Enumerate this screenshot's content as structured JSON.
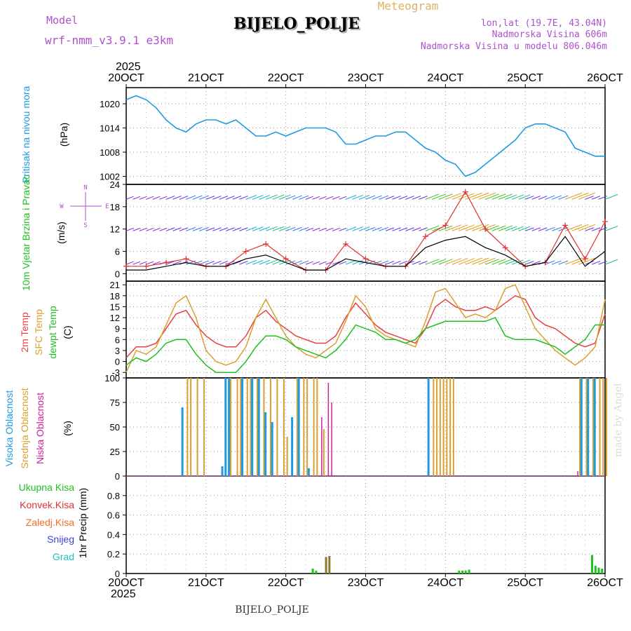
{
  "header": {
    "model_label": "Model",
    "model_name": "wrf-nmm_v3.9.1  e3km",
    "station": "BIJELO_POLJE",
    "product": "Meteogram",
    "lonlat": "lon,lat (19.7E, 43.04N)",
    "elevation": "Nadmorska Visina 606m",
    "model_elevation": "Nadmorska Visina u modelu 806.046m",
    "footer_station": "BIJELO_POLJE",
    "watermark": "made by Angel"
  },
  "colors": {
    "pressure": "#1e9be0",
    "wind_speed": "#000000",
    "gust": "#e03030",
    "t2m": "#e84040",
    "sfc": "#d9a030",
    "dewpt": "#20c020",
    "high_cloud": "#1e9be0",
    "mid_cloud": "#d9a030",
    "low_cloud": "#d020a0",
    "precip_total": "#20c020",
    "precip_conv": "#e03030",
    "precip_frozen": "#f07020",
    "snow": "#4040e0",
    "hail": "#20c0c0",
    "title_purple": "#b050d0",
    "meteogram_orange": "#e0b060"
  },
  "x_axis": {
    "top_labels": [
      "20OCT",
      "21OCT",
      "22OCT",
      "23OCT",
      "24OCT",
      "25OCT",
      "26OCT"
    ],
    "bottom_labels": [
      "20OCT",
      "21OCT",
      "22OCT",
      "23OCT",
      "24OCT",
      "25OCT",
      "26OCT"
    ],
    "year_top": "2025",
    "year_bottom": "2025"
  },
  "chart_data": [
    {
      "type": "line",
      "panel": "pressure",
      "ylabel": "Pritisak na nivou mora",
      "unit": "(hPa)",
      "yticks": [
        "1002",
        "1008",
        "1014",
        "1020"
      ],
      "ylim": [
        1000,
        1024
      ],
      "x": [
        0,
        3,
        6,
        9,
        12,
        15,
        18,
        21,
        24,
        27,
        30,
        33,
        36,
        39,
        42,
        45,
        48,
        51,
        54,
        57,
        60,
        63,
        66,
        69,
        72,
        75,
        78,
        81,
        84,
        87,
        90,
        93,
        96,
        99,
        102,
        105,
        108,
        111,
        114,
        117,
        120,
        123,
        126,
        129,
        132,
        135,
        138,
        141,
        144
      ],
      "values": [
        1021,
        1022,
        1021,
        1019,
        1016,
        1014,
        1013,
        1015,
        1016,
        1016,
        1015,
        1016,
        1014,
        1012,
        1012,
        1013,
        1012,
        1013,
        1014,
        1014,
        1014,
        1013,
        1010,
        1010,
        1011,
        1012,
        1012,
        1013,
        1013,
        1011,
        1009,
        1008,
        1006,
        1005,
        1002,
        1003,
        1005,
        1007,
        1009,
        1011,
        1014,
        1015,
        1015,
        1014,
        1013,
        1009,
        1008,
        1007,
        1007
      ]
    },
    {
      "type": "line",
      "panel": "wind",
      "ylabel": "10m Vjetar Brzina i Pravac",
      "unit": "(m/s)",
      "compass": {
        "n": "N",
        "s": "S",
        "e": "E",
        "w": "W"
      },
      "yticks": [
        "0",
        "6",
        "12",
        "18",
        "24"
      ],
      "ylim": [
        -2,
        24
      ],
      "x": [
        0,
        6,
        12,
        18,
        24,
        30,
        36,
        42,
        48,
        54,
        60,
        66,
        72,
        78,
        84,
        90,
        96,
        102,
        108,
        114,
        120,
        126,
        132,
        138,
        144
      ],
      "speed": [
        1,
        1,
        2,
        3,
        2,
        2,
        4,
        5,
        3,
        1,
        1,
        4,
        3,
        2,
        2,
        7,
        9,
        10,
        7,
        5,
        2,
        3,
        10,
        2,
        6
      ],
      "gust": [
        2,
        2,
        3,
        4,
        2,
        2,
        6,
        8,
        4,
        1,
        1,
        8,
        4,
        2,
        2,
        10,
        13,
        22,
        12,
        7,
        2,
        3,
        13,
        4,
        14
      ]
    },
    {
      "type": "line",
      "panel": "temperature",
      "ylabel_lines": [
        "2m Temp",
        "SFC Temp",
        "dewpt Temp"
      ],
      "unit": "(C)",
      "yticks": [
        "-3",
        "0",
        "3",
        "6",
        "9",
        "12",
        "15",
        "18",
        "21"
      ],
      "ylim": [
        -4.5,
        22
      ],
      "x": [
        0,
        3,
        6,
        9,
        12,
        15,
        18,
        21,
        24,
        27,
        30,
        33,
        36,
        39,
        42,
        45,
        48,
        51,
        54,
        57,
        60,
        63,
        66,
        69,
        72,
        75,
        78,
        81,
        84,
        87,
        90,
        93,
        96,
        99,
        102,
        105,
        108,
        111,
        114,
        117,
        120,
        123,
        126,
        129,
        132,
        135,
        138,
        141,
        144
      ],
      "series": [
        {
          "name": "2m Temp",
          "values": [
            1,
            4,
            4,
            5,
            9,
            13,
            14,
            10,
            7,
            5,
            4,
            4,
            7,
            12,
            14,
            11,
            9,
            7,
            6,
            5,
            5,
            7,
            12,
            16,
            13,
            10,
            8,
            7,
            6,
            5,
            9,
            15,
            17,
            15,
            14,
            14,
            15,
            14,
            16,
            18,
            17,
            12,
            10,
            9,
            7,
            5,
            4,
            5,
            13
          ]
        },
        {
          "name": "SFC Temp",
          "values": [
            -3,
            3,
            2,
            4,
            10,
            16,
            18,
            12,
            3,
            0,
            -1,
            0,
            4,
            12,
            17,
            12,
            7,
            4,
            2,
            1,
            3,
            5,
            11,
            18,
            15,
            9,
            7,
            6,
            5,
            4,
            11,
            19,
            20,
            16,
            12,
            13,
            12,
            14,
            20,
            21,
            15,
            9,
            6,
            3,
            1,
            -1,
            1,
            4,
            17
          ]
        },
        {
          "name": "dewpt Temp",
          "values": [
            -1,
            1,
            0,
            2,
            5,
            6,
            6,
            2,
            -1,
            -3,
            -3,
            -3,
            0,
            4,
            7,
            7,
            6,
            4,
            3,
            2,
            1,
            3,
            6,
            10,
            9,
            8,
            6,
            6,
            5,
            6,
            9,
            10,
            11,
            11,
            11,
            11,
            11,
            12,
            7,
            6,
            6,
            6,
            5,
            4,
            2,
            4,
            6,
            10,
            10
          ]
        }
      ]
    },
    {
      "type": "bar",
      "panel": "clouds",
      "ylabel_lines": [
        "Visoka Oblacnost",
        "Srednja Oblacnost",
        "Niska Oblacnost"
      ],
      "unit": "(%)",
      "yticks": [
        "0",
        "25",
        "50",
        "75",
        "100"
      ],
      "ylim": [
        0,
        100
      ],
      "high": [
        [
          17,
          70
        ],
        [
          29,
          10
        ],
        [
          30,
          100
        ],
        [
          31,
          100
        ],
        [
          35,
          100
        ],
        [
          38,
          100
        ],
        [
          40,
          100
        ],
        [
          42,
          65
        ],
        [
          44,
          55
        ],
        [
          50,
          60
        ],
        [
          52,
          100
        ],
        [
          55,
          8
        ],
        [
          91,
          100
        ],
        [
          137,
          100
        ],
        [
          139,
          100
        ],
        [
          141,
          100
        ]
      ],
      "mid": [
        [
          18,
          100
        ],
        [
          19,
          100
        ],
        [
          21,
          100
        ],
        [
          23,
          100
        ],
        [
          31,
          100
        ],
        [
          33,
          100
        ],
        [
          34,
          100
        ],
        [
          36,
          100
        ],
        [
          37,
          100
        ],
        [
          39,
          100
        ],
        [
          41,
          100
        ],
        [
          43,
          100
        ],
        [
          45,
          100
        ],
        [
          47,
          100
        ],
        [
          48,
          40
        ],
        [
          51,
          100
        ],
        [
          53,
          100
        ],
        [
          54,
          100
        ],
        [
          56,
          100
        ],
        [
          57,
          100
        ],
        [
          59,
          48
        ],
        [
          92,
          100
        ],
        [
          93,
          100
        ],
        [
          94,
          100
        ],
        [
          95,
          100
        ],
        [
          96,
          100
        ],
        [
          97,
          100
        ],
        [
          98,
          100
        ],
        [
          136,
          100
        ],
        [
          138,
          100
        ],
        [
          140,
          100
        ],
        [
          142,
          100
        ],
        [
          143,
          100
        ],
        [
          144,
          100
        ]
      ],
      "low": [
        [
          58,
          60
        ],
        [
          60,
          95
        ],
        [
          61,
          75
        ],
        [
          135,
          5
        ]
      ]
    },
    {
      "type": "bar",
      "panel": "precip",
      "ylabel": "1hr Precip (mm)",
      "legend": [
        "Ukupna Kisa",
        "Konvek.Kisa",
        "Zaledj.Kisa",
        "Snijeg",
        "Grad"
      ],
      "yticks": [
        "0",
        "0.2",
        "0.4",
        "0.6",
        "0.8"
      ],
      "ylim": [
        0,
        1.0
      ],
      "total": [
        [
          56,
          0.05
        ],
        [
          57,
          0.03
        ],
        [
          60,
          0.17
        ],
        [
          61,
          0.18
        ],
        [
          100,
          0.03
        ],
        [
          101,
          0.03
        ],
        [
          102,
          0.03
        ],
        [
          103,
          0.04
        ],
        [
          140,
          0.19
        ],
        [
          141,
          0.08
        ],
        [
          142,
          0.06
        ],
        [
          143,
          0.05
        ]
      ]
    }
  ]
}
